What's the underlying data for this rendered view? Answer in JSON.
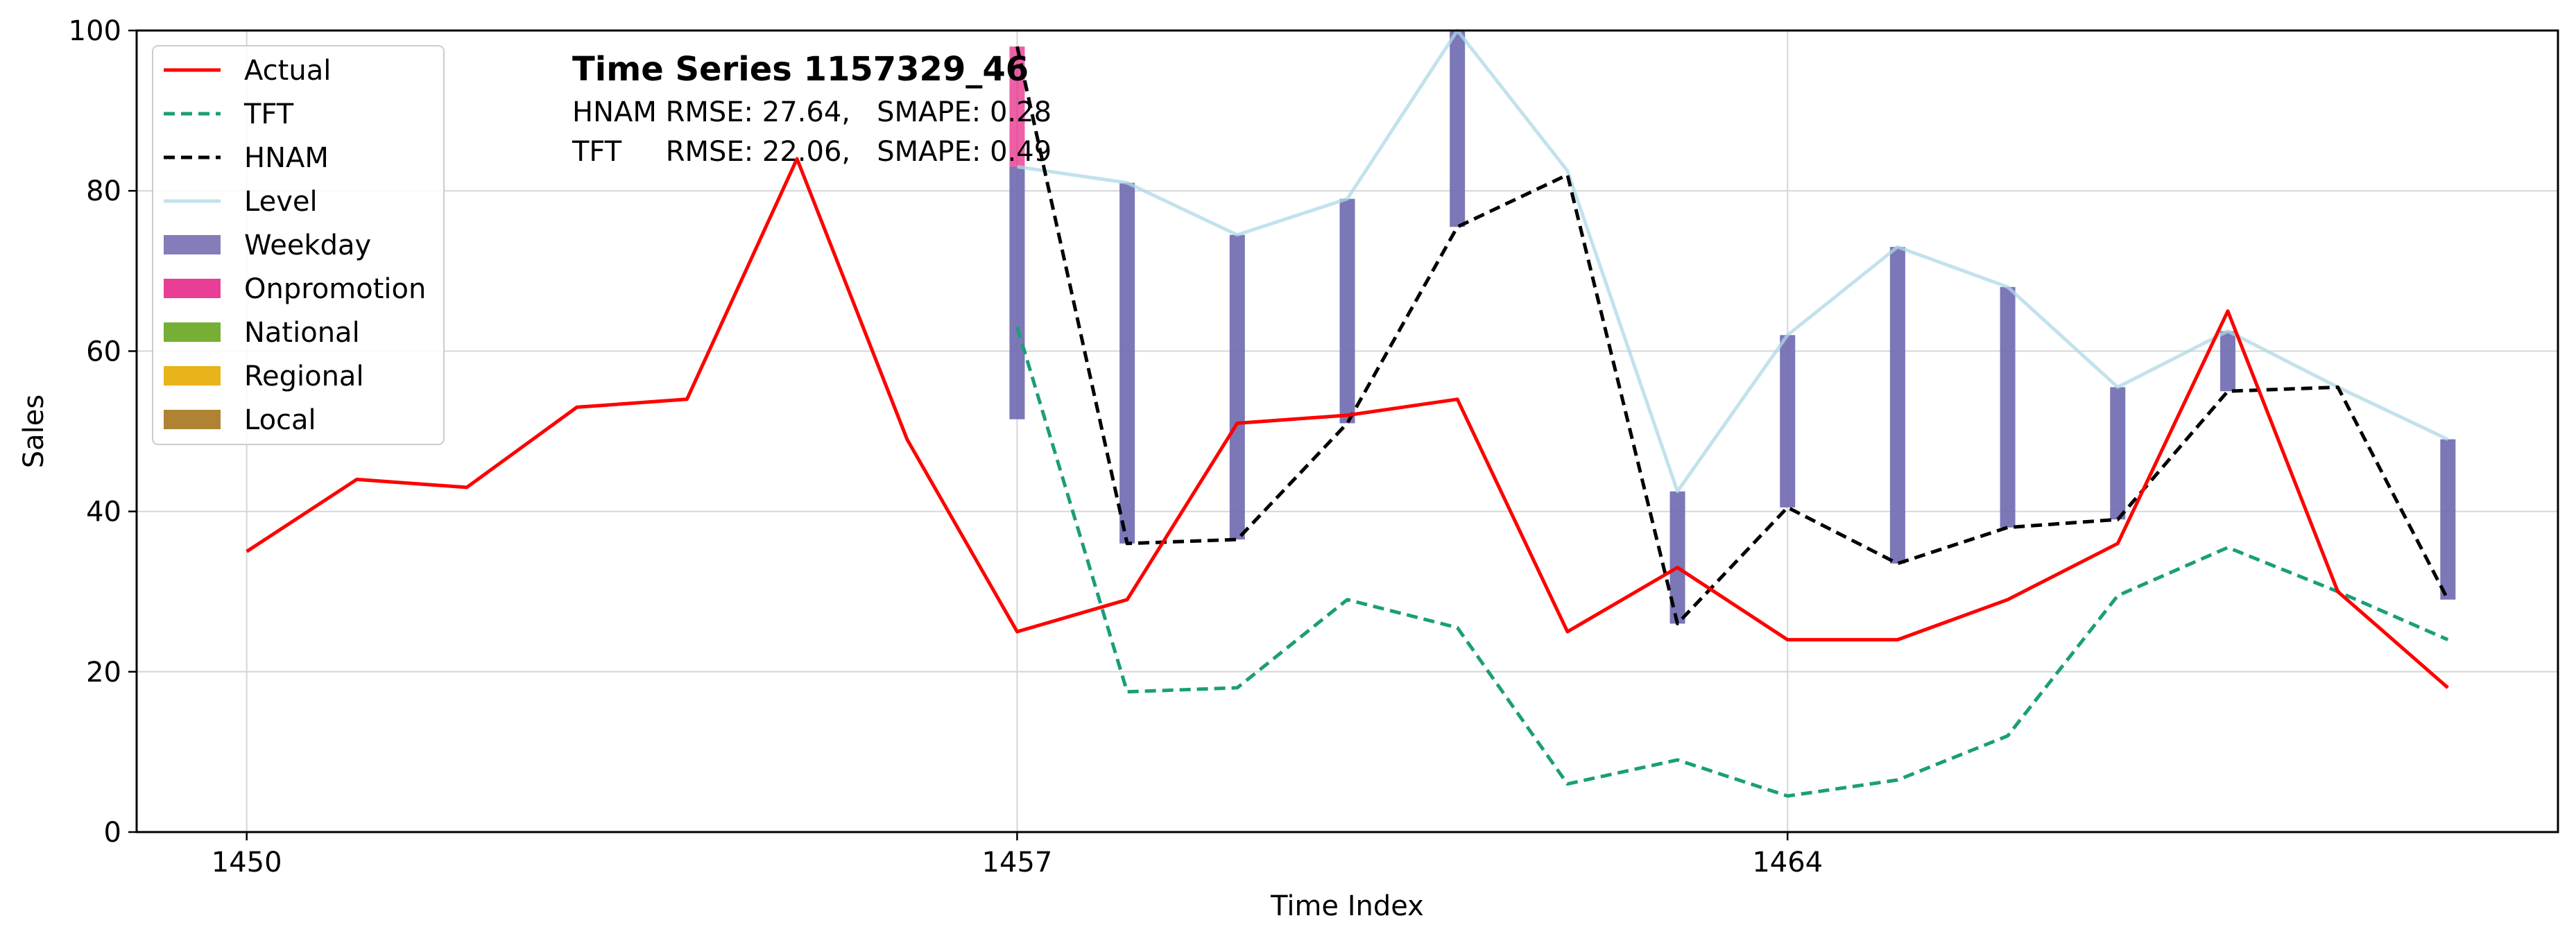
{
  "chart_data": {
    "type": "line",
    "title": "Time Series 1157329_46",
    "metrics": [
      {
        "model": "HNAM",
        "text": "HNAM RMSE: 27.64,   SMAPE: 0.28"
      },
      {
        "model": "TFT",
        "text": "TFT     RMSE: 22.06,   SMAPE: 0.49"
      }
    ],
    "xlabel": "Time Index",
    "ylabel": "Sales",
    "xlim": [
      1449,
      1471
    ],
    "ylim": [
      0,
      100
    ],
    "xticks": [
      1450,
      1457,
      1464
    ],
    "yticks": [
      0,
      20,
      40,
      60,
      80,
      100
    ],
    "grid": true,
    "legend_position": "top-left",
    "legend": [
      {
        "label": "Actual",
        "kind": "line",
        "color": "#ff0000",
        "dash": "solid"
      },
      {
        "label": "TFT",
        "kind": "line",
        "color": "#1b9e77",
        "dash": "dashed"
      },
      {
        "label": "HNAM",
        "kind": "line",
        "color": "#000000",
        "dash": "dashed"
      },
      {
        "label": "Level",
        "kind": "line",
        "color": "#add8e6",
        "dash": "solid"
      },
      {
        "label": "Weekday",
        "kind": "patch",
        "color": "#7570b3"
      },
      {
        "label": "Onpromotion",
        "kind": "patch",
        "color": "#e7298a"
      },
      {
        "label": "National",
        "kind": "patch",
        "color": "#66a61e"
      },
      {
        "label": "Regional",
        "kind": "patch",
        "color": "#e6ab02"
      },
      {
        "label": "Local",
        "kind": "patch",
        "color": "#a6761d"
      }
    ],
    "series": [
      {
        "name": "Actual",
        "x": [
          1450,
          1451,
          1452,
          1453,
          1454,
          1455,
          1456,
          1457,
          1458,
          1459,
          1460,
          1461,
          1462,
          1463,
          1464,
          1465,
          1466,
          1467,
          1468,
          1469,
          1470
        ],
        "values": [
          35,
          44,
          43,
          53,
          54,
          84,
          49,
          25,
          29,
          51,
          52,
          54,
          25,
          33,
          24,
          24,
          29,
          36,
          65,
          30,
          18
        ]
      },
      {
        "name": "TFT",
        "x": [
          1457,
          1458,
          1459,
          1460,
          1461,
          1462,
          1463,
          1464,
          1465,
          1466,
          1467,
          1468,
          1469,
          1470
        ],
        "values": [
          63,
          17.5,
          18,
          29,
          25.5,
          6,
          9,
          4.5,
          6.5,
          12,
          29.5,
          35.5,
          30,
          24
        ]
      },
      {
        "name": "HNAM",
        "x": [
          1457,
          1458,
          1459,
          1460,
          1461,
          1462,
          1463,
          1464,
          1465,
          1466,
          1467,
          1468,
          1469,
          1470
        ],
        "values": [
          98,
          36,
          36.5,
          51,
          75.5,
          82,
          26,
          40.5,
          33.5,
          38,
          39,
          55,
          55.5,
          29
        ]
      },
      {
        "name": "Level",
        "x": [
          1457,
          1458,
          1459,
          1460,
          1461,
          1462,
          1463,
          1464,
          1465,
          1466,
          1467,
          1468,
          1469,
          1470
        ],
        "values": [
          83,
          81,
          74.5,
          79,
          100,
          82.5,
          42.5,
          62,
          73,
          68,
          55.5,
          62.5,
          55.5,
          49
        ]
      }
    ],
    "components": [
      {
        "name": "Weekday",
        "x": 1457,
        "from": 51.5,
        "to": 83
      },
      {
        "name": "Onpromotion",
        "x": 1457,
        "from": 83,
        "to": 98
      },
      {
        "name": "Weekday",
        "x": 1458,
        "from": 36,
        "to": 81
      },
      {
        "name": "Weekday",
        "x": 1459,
        "from": 36.5,
        "to": 74.5
      },
      {
        "name": "Weekday",
        "x": 1460,
        "from": 51,
        "to": 79
      },
      {
        "name": "Weekday",
        "x": 1461,
        "from": 75.5,
        "to": 100
      },
      {
        "name": "Weekday",
        "x": 1463,
        "from": 26,
        "to": 42.5
      },
      {
        "name": "Weekday",
        "x": 1464,
        "from": 40.5,
        "to": 62
      },
      {
        "name": "Weekday",
        "x": 1465,
        "from": 33.5,
        "to": 73
      },
      {
        "name": "Weekday",
        "x": 1466,
        "from": 38,
        "to": 68
      },
      {
        "name": "Weekday",
        "x": 1467,
        "from": 39,
        "to": 55.5
      },
      {
        "name": "Weekday",
        "x": 1468,
        "from": 55,
        "to": 62.5
      },
      {
        "name": "Weekday",
        "x": 1470,
        "from": 29,
        "to": 49
      }
    ]
  }
}
